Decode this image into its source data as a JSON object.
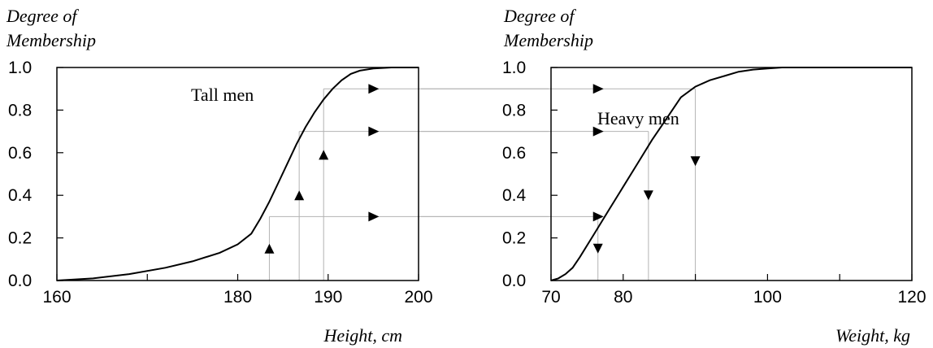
{
  "chart_data": [
    {
      "type": "line",
      "ylabel_line1": "Degree of",
      "ylabel_line2": "Membership",
      "xlabel": "Height, cm",
      "xlim": [
        160,
        200
      ],
      "ylim": [
        0,
        1
      ],
      "x_ticks": [
        160,
        170,
        180,
        190,
        200
      ],
      "x_tick_labels": [
        "160",
        "180",
        "190",
        "200"
      ],
      "x_tick_label_values": [
        160,
        180,
        190,
        200
      ],
      "y_tick_labels": [
        "0.0",
        "0.2",
        "0.4",
        "0.6",
        "0.8",
        "1.0"
      ],
      "y_ticks": [
        0,
        0.2,
        0.4,
        0.6,
        0.8,
        1.0
      ],
      "series": [
        {
          "name": "Tall men",
          "x": [
            160,
            164,
            168,
            172,
            175,
            178,
            180,
            181.5,
            182.5,
            183.5,
            184.5,
            185.5,
            186.5,
            187.5,
            188.5,
            189.5,
            190.5,
            191.5,
            192.5,
            193.5,
            195,
            197,
            200
          ],
          "y": [
            0,
            0.01,
            0.03,
            0.06,
            0.09,
            0.13,
            0.17,
            0.22,
            0.29,
            0.37,
            0.46,
            0.55,
            0.64,
            0.72,
            0.79,
            0.85,
            0.9,
            0.94,
            0.97,
            0.985,
            0.995,
            1.0,
            1.0
          ]
        }
      ],
      "markers": [
        {
          "x": 183.5,
          "y": 0.15,
          "dir": "up"
        },
        {
          "x": 186.8,
          "y": 0.4,
          "dir": "up"
        },
        {
          "x": 189.5,
          "y": 0.59,
          "dir": "up"
        }
      ],
      "guides_vertical": [
        {
          "x": 183.5,
          "y": 0.3
        },
        {
          "x": 186.8,
          "y": 0.7
        },
        {
          "x": 189.5,
          "y": 0.9
        }
      ],
      "guides_horizontal": [
        0.3,
        0.7,
        0.9
      ],
      "right_arrows_x": 195
    },
    {
      "type": "line",
      "ylabel_line1": "Degree of",
      "ylabel_line2": "Membership",
      "xlabel": "Weight, kg",
      "xlim": [
        70,
        120
      ],
      "ylim": [
        0,
        1
      ],
      "x_ticks": [
        70,
        80,
        90,
        100,
        110,
        120
      ],
      "x_tick_labels": [
        "70",
        "80",
        "100",
        "120"
      ],
      "x_tick_label_values": [
        70,
        80,
        100,
        120
      ],
      "y_tick_labels": [
        "0.0",
        "0.2",
        "0.4",
        "0.6",
        "0.8",
        "1.0"
      ],
      "y_ticks": [
        0,
        0.2,
        0.4,
        0.6,
        0.8,
        1.0
      ],
      "series": [
        {
          "name": "Heavy men",
          "x": [
            70,
            71,
            72,
            73,
            74,
            76,
            78,
            80,
            82,
            84,
            86,
            88,
            90,
            92,
            94,
            96,
            98,
            100,
            102,
            104,
            106,
            110,
            120
          ],
          "y": [
            0,
            0.01,
            0.03,
            0.06,
            0.11,
            0.22,
            0.33,
            0.44,
            0.55,
            0.66,
            0.76,
            0.86,
            0.91,
            0.94,
            0.96,
            0.98,
            0.99,
            0.995,
            1.0,
            1.0,
            1.0,
            1.0,
            1.0
          ]
        }
      ],
      "markers": [
        {
          "x": 76.5,
          "y": 0.15,
          "dir": "down"
        },
        {
          "x": 83.5,
          "y": 0.4,
          "dir": "down"
        },
        {
          "x": 90,
          "y": 0.56,
          "dir": "down"
        }
      ],
      "guides_vertical": [
        {
          "x": 76.5,
          "y": 0.3
        },
        {
          "x": 83.5,
          "y": 0.7
        },
        {
          "x": 90,
          "y": 0.9
        }
      ],
      "guides_horizontal": [
        0.3,
        0.7,
        0.9
      ],
      "right_arrows_x": 76.5
    }
  ]
}
